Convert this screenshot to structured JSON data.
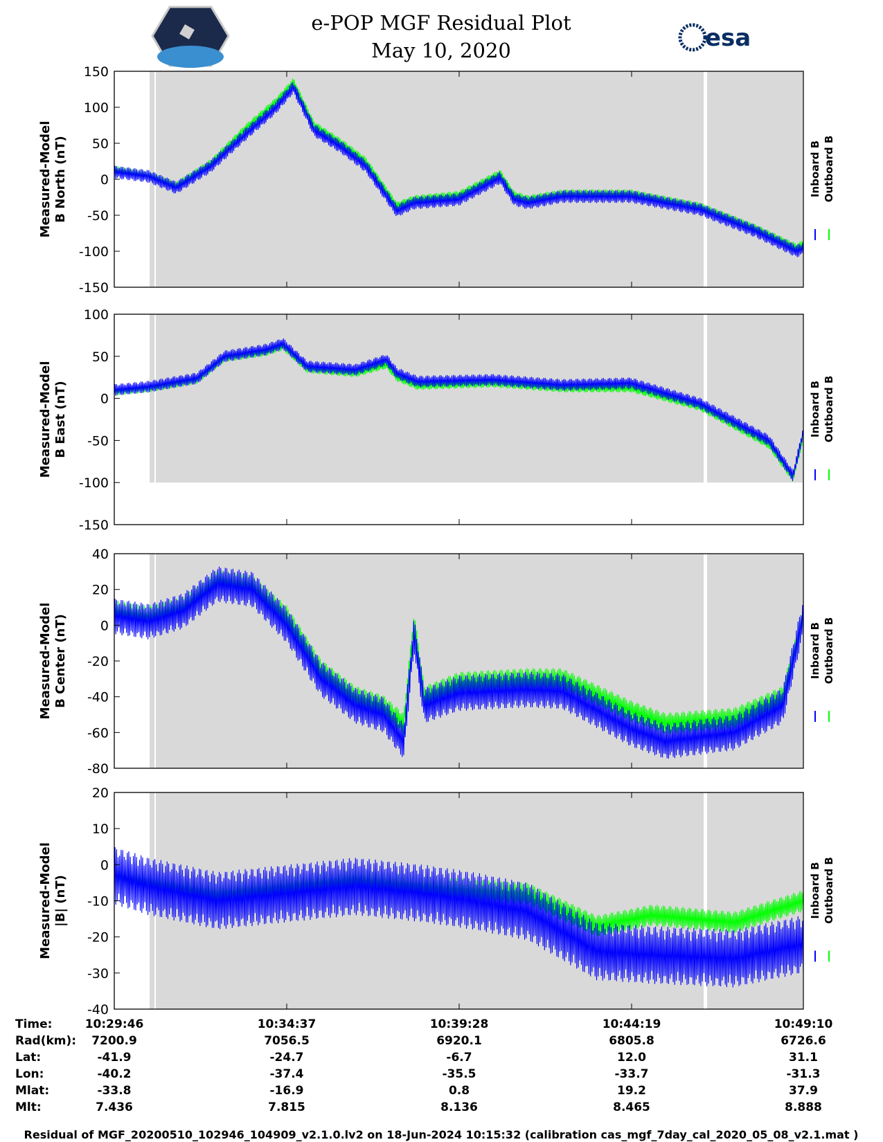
{
  "header": {
    "title": "e-POP MGF Residual Plot",
    "date": "May 10, 2020",
    "left_logo": "cassiope-mission-patch",
    "right_logo": "esa",
    "right_logo_text": "esa"
  },
  "legend": {
    "inboard": "Inboard B",
    "outboard": "Outboard B",
    "inboard_color": "#0000ff",
    "outboard_color": "#00ff00"
  },
  "colors": {
    "shade": "#d9d9d9",
    "inboard": "#0000ff",
    "outboard": "#00ff00"
  },
  "chart_data": [
    {
      "type": "line",
      "panel": "north",
      "ylabel": [
        "Measured-Model",
        "B North (nT)"
      ],
      "ylim": [
        -150,
        150
      ],
      "yticks": [
        150,
        100,
        50,
        0,
        -50,
        -100,
        -150
      ],
      "shade": {
        "ymin": -150,
        "ymax": 150
      },
      "series": [
        {
          "name": "Outboard B",
          "color": "#00ff00",
          "amp": 6,
          "points": [
            [
              0,
              13
            ],
            [
              0.05,
              5
            ],
            [
              0.09,
              -9
            ],
            [
              0.14,
              22
            ],
            [
              0.19,
              70
            ],
            [
              0.235,
              108
            ],
            [
              0.26,
              135
            ],
            [
              0.29,
              75
            ],
            [
              0.33,
              50
            ],
            [
              0.365,
              25
            ],
            [
              0.41,
              -37
            ],
            [
              0.435,
              -28
            ],
            [
              0.5,
              -22
            ],
            [
              0.56,
              8
            ],
            [
              0.58,
              -22
            ],
            [
              0.6,
              -28
            ],
            [
              0.65,
              -20
            ],
            [
              0.75,
              -20
            ],
            [
              0.85,
              -38
            ],
            [
              0.93,
              -68
            ],
            [
              0.99,
              -95
            ],
            [
              1.0,
              -90
            ]
          ]
        },
        {
          "name": "Inboard B",
          "color": "#0000ff",
          "amp": 9,
          "points": [
            [
              0,
              10
            ],
            [
              0.05,
              4
            ],
            [
              0.09,
              -12
            ],
            [
              0.14,
              18
            ],
            [
              0.19,
              62
            ],
            [
              0.235,
              100
            ],
            [
              0.26,
              128
            ],
            [
              0.29,
              68
            ],
            [
              0.33,
              44
            ],
            [
              0.365,
              18
            ],
            [
              0.41,
              -44
            ],
            [
              0.435,
              -33
            ],
            [
              0.5,
              -28
            ],
            [
              0.56,
              2
            ],
            [
              0.58,
              -28
            ],
            [
              0.6,
              -33
            ],
            [
              0.65,
              -24
            ],
            [
              0.75,
              -24
            ],
            [
              0.85,
              -42
            ],
            [
              0.93,
              -72
            ],
            [
              0.99,
              -100
            ],
            [
              1.0,
              -96
            ]
          ]
        }
      ]
    },
    {
      "type": "line",
      "panel": "east",
      "ylabel": [
        "Measured-Model",
        "B East (nT)"
      ],
      "ylim": [
        -150,
        100
      ],
      "yticks": [
        100,
        50,
        0,
        -50,
        -100,
        -150
      ],
      "shade": {
        "ymin": -100,
        "ymax": 100
      },
      "series": [
        {
          "name": "Outboard B",
          "color": "#00ff00",
          "amp": 5,
          "points": [
            [
              0,
              8
            ],
            [
              0.05,
              12
            ],
            [
              0.12,
              22
            ],
            [
              0.16,
              48
            ],
            [
              0.22,
              55
            ],
            [
              0.245,
              62
            ],
            [
              0.28,
              35
            ],
            [
              0.35,
              30
            ],
            [
              0.395,
              40
            ],
            [
              0.41,
              25
            ],
            [
              0.44,
              15
            ],
            [
              0.55,
              18
            ],
            [
              0.65,
              12
            ],
            [
              0.75,
              12
            ],
            [
              0.85,
              -10
            ],
            [
              0.95,
              -55
            ],
            [
              0.985,
              -95
            ],
            [
              1.0,
              -45
            ]
          ]
        },
        {
          "name": "Inboard B",
          "color": "#0000ff",
          "amp": 7,
          "points": [
            [
              0,
              10
            ],
            [
              0.05,
              14
            ],
            [
              0.12,
              24
            ],
            [
              0.16,
              50
            ],
            [
              0.22,
              58
            ],
            [
              0.245,
              65
            ],
            [
              0.28,
              38
            ],
            [
              0.35,
              34
            ],
            [
              0.395,
              46
            ],
            [
              0.41,
              30
            ],
            [
              0.44,
              20
            ],
            [
              0.55,
              22
            ],
            [
              0.65,
              16
            ],
            [
              0.75,
              18
            ],
            [
              0.85,
              -6
            ],
            [
              0.95,
              -50
            ],
            [
              0.985,
              -92
            ],
            [
              1.0,
              -40
            ]
          ]
        }
      ]
    },
    {
      "type": "line",
      "panel": "center",
      "ylabel": [
        "Measured-Model",
        "B Center (nT)"
      ],
      "ylim": [
        -80,
        40
      ],
      "yticks": [
        40,
        20,
        0,
        -20,
        -40,
        -60,
        -80
      ],
      "shade": {
        "ymin": -80,
        "ymax": 40
      },
      "series": [
        {
          "name": "Outboard B",
          "color": "#00ff00",
          "amp": 6,
          "points": [
            [
              0,
              8
            ],
            [
              0.05,
              5
            ],
            [
              0.1,
              10
            ],
            [
              0.15,
              25
            ],
            [
              0.2,
              22
            ],
            [
              0.25,
              5
            ],
            [
              0.3,
              -25
            ],
            [
              0.35,
              -40
            ],
            [
              0.39,
              -45
            ],
            [
              0.42,
              -55
            ],
            [
              0.435,
              2
            ],
            [
              0.45,
              -40
            ],
            [
              0.5,
              -32
            ],
            [
              0.6,
              -30
            ],
            [
              0.65,
              -30
            ],
            [
              0.75,
              -48
            ],
            [
              0.8,
              -55
            ],
            [
              0.9,
              -52
            ],
            [
              0.97,
              -40
            ],
            [
              1.0,
              5
            ]
          ]
        },
        {
          "name": "Inboard B",
          "color": "#0000ff",
          "amp": 10,
          "points": [
            [
              0,
              5
            ],
            [
              0.05,
              2
            ],
            [
              0.1,
              8
            ],
            [
              0.15,
              23
            ],
            [
              0.2,
              20
            ],
            [
              0.25,
              0
            ],
            [
              0.3,
              -30
            ],
            [
              0.35,
              -45
            ],
            [
              0.39,
              -50
            ],
            [
              0.42,
              -65
            ],
            [
              0.435,
              -5
            ],
            [
              0.45,
              -45
            ],
            [
              0.5,
              -38
            ],
            [
              0.6,
              -36
            ],
            [
              0.65,
              -37
            ],
            [
              0.75,
              -58
            ],
            [
              0.8,
              -65
            ],
            [
              0.9,
              -60
            ],
            [
              0.97,
              -45
            ],
            [
              1.0,
              5
            ]
          ]
        }
      ]
    },
    {
      "type": "line",
      "panel": "total",
      "ylabel": [
        "Measured-Model",
        "|B| (nT)"
      ],
      "ylim": [
        -40,
        20
      ],
      "yticks": [
        20,
        10,
        0,
        -10,
        -20,
        -30,
        -40
      ],
      "shade": {
        "ymin": -40,
        "ymax": 20
      },
      "series": [
        {
          "name": "Outboard B",
          "color": "#00ff00",
          "amp": 3,
          "points": [
            [
              0,
              -3
            ],
            [
              0.05,
              -5
            ],
            [
              0.15,
              -8
            ],
            [
              0.25,
              -6
            ],
            [
              0.35,
              -4
            ],
            [
              0.45,
              -6
            ],
            [
              0.52,
              -7
            ],
            [
              0.6,
              -8
            ],
            [
              0.7,
              -17
            ],
            [
              0.78,
              -14
            ],
            [
              0.9,
              -16
            ],
            [
              1.0,
              -10
            ]
          ]
        },
        {
          "name": "Inboard B",
          "color": "#0000ff",
          "amp": 8,
          "points": [
            [
              0,
              -3
            ],
            [
              0.05,
              -6
            ],
            [
              0.15,
              -10
            ],
            [
              0.25,
              -8
            ],
            [
              0.35,
              -6
            ],
            [
              0.45,
              -8
            ],
            [
              0.52,
              -10
            ],
            [
              0.6,
              -13
            ],
            [
              0.7,
              -24
            ],
            [
              0.78,
              -25
            ],
            [
              0.9,
              -26
            ],
            [
              1.0,
              -22
            ]
          ]
        }
      ]
    }
  ],
  "table": {
    "labels": [
      "Time:",
      "Rad(km):",
      "Lat:",
      "Lon:",
      "Mlat:",
      "Mlt:"
    ],
    "columns": [
      [
        "10:29:46",
        "7200.9",
        "-41.9",
        "-40.2",
        "-33.8",
        "7.436"
      ],
      [
        "10:34:37",
        "7056.5",
        "-24.7",
        "-37.4",
        "-16.9",
        "7.815"
      ],
      [
        "10:39:28",
        "6920.1",
        "-6.7",
        "-35.5",
        "0.8",
        "8.136"
      ],
      [
        "10:44:19",
        "6805.8",
        "12.0",
        "-33.7",
        "19.2",
        "8.465"
      ],
      [
        "10:49:10",
        "6726.6",
        "31.1",
        "-31.3",
        "37.9",
        "8.888"
      ]
    ]
  },
  "footer": "Residual of MGF_20200510_102946_104909_v2.1.0.lv2 on 18-Jun-2024 10:15:32 (calibration cas_mgf_7day_cal_2020_05_08_v2.1.mat )"
}
